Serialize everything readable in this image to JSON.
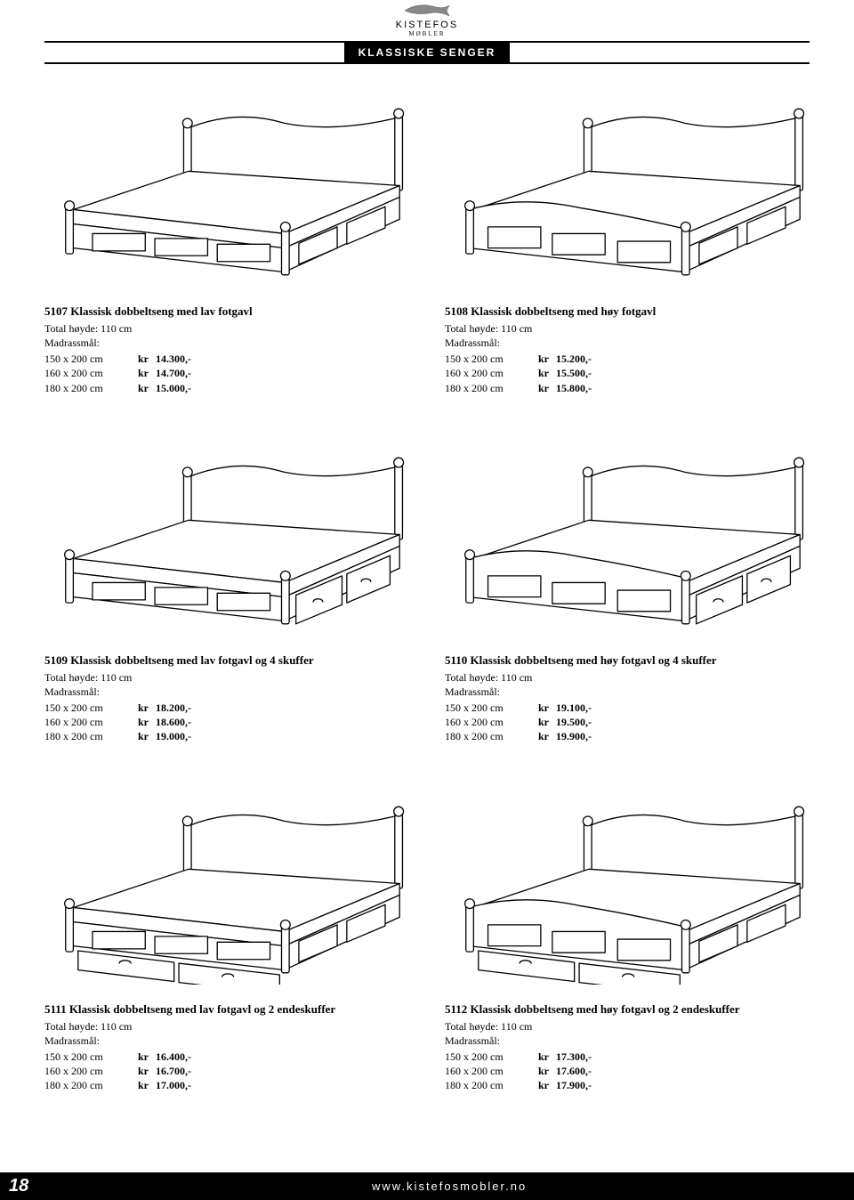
{
  "brand": {
    "name": "KISTEFOS",
    "subtitle": "MØBLER"
  },
  "section_title": "KLASSISKE SENGER",
  "page_number": "18",
  "footer_url": "www.kistefosmobler.no",
  "colors": {
    "text": "#000000",
    "background": "#ffffff",
    "bar_bg": "#000000",
    "bar_text": "#ffffff"
  },
  "typography": {
    "body_font": "Georgia, Times New Roman, serif",
    "heading_font": "Arial, Helvetica, sans-serif",
    "title_fontsize": 13,
    "body_fontsize": 12,
    "section_title_fontsize": 12,
    "page_num_fontsize": 20
  },
  "madrass_label": "Madrassmål:",
  "currency_label": "kr",
  "products": [
    {
      "title": "5107 Klassisk dobbeltseng med lav fotgavl",
      "height_line": "Total høyde: 110 cm",
      "image_variant": "low_footboard",
      "prices": [
        {
          "size": "150 x 200 cm",
          "value": "14.300,-"
        },
        {
          "size": "160 x 200 cm",
          "value": "14.700,-"
        },
        {
          "size": "180 x 200 cm",
          "value": "15.000,-"
        }
      ]
    },
    {
      "title": "5108 Klassisk dobbeltseng med høy fotgavl",
      "height_line": "Total høyde: 110 cm",
      "image_variant": "high_footboard",
      "prices": [
        {
          "size": "150 x 200 cm",
          "value": "15.200,-"
        },
        {
          "size": "160 x 200 cm",
          "value": "15.500,-"
        },
        {
          "size": "180 x 200 cm",
          "value": "15.800,-"
        }
      ]
    },
    {
      "title": "5109 Klassisk dobbeltseng med lav fotgavl og 4 skuffer",
      "height_line": "Total høyde: 110 cm",
      "image_variant": "low_footboard_side_drawers",
      "prices": [
        {
          "size": "150 x 200 cm",
          "value": "18.200,-"
        },
        {
          "size": "160 x 200 cm",
          "value": "18.600,-"
        },
        {
          "size": "180 x 200 cm",
          "value": "19.000,-"
        }
      ]
    },
    {
      "title": "5110 Klassisk dobbeltseng med høy fotgavl og 4 skuffer",
      "height_line": "Total høyde: 110 cm",
      "image_variant": "high_footboard_side_drawers",
      "prices": [
        {
          "size": "150 x 200 cm",
          "value": "19.100,-"
        },
        {
          "size": "160 x 200 cm",
          "value": "19.500,-"
        },
        {
          "size": "180 x 200 cm",
          "value": "19.900,-"
        }
      ]
    },
    {
      "title": "5111 Klassisk dobbeltseng med lav fotgavl og 2 endeskuffer",
      "height_line": "Total høyde: 110 cm",
      "image_variant": "low_footboard_end_drawers",
      "prices": [
        {
          "size": "150 x 200 cm",
          "value": "16.400,-"
        },
        {
          "size": "160 x 200 cm",
          "value": "16.700,-"
        },
        {
          "size": "180 x 200 cm",
          "value": "17.000,-"
        }
      ]
    },
    {
      "title": "5112 Klassisk dobbeltseng med høy fotgavl og 2 endeskuffer",
      "height_line": "Total høyde: 110 cm",
      "image_variant": "high_footboard_end_drawers",
      "prices": [
        {
          "size": "150 x 200 cm",
          "value": "17.300,-"
        },
        {
          "size": "160 x 200 cm",
          "value": "17.600,-"
        },
        {
          "size": "180 x 200 cm",
          "value": "17.900,-"
        }
      ]
    }
  ]
}
